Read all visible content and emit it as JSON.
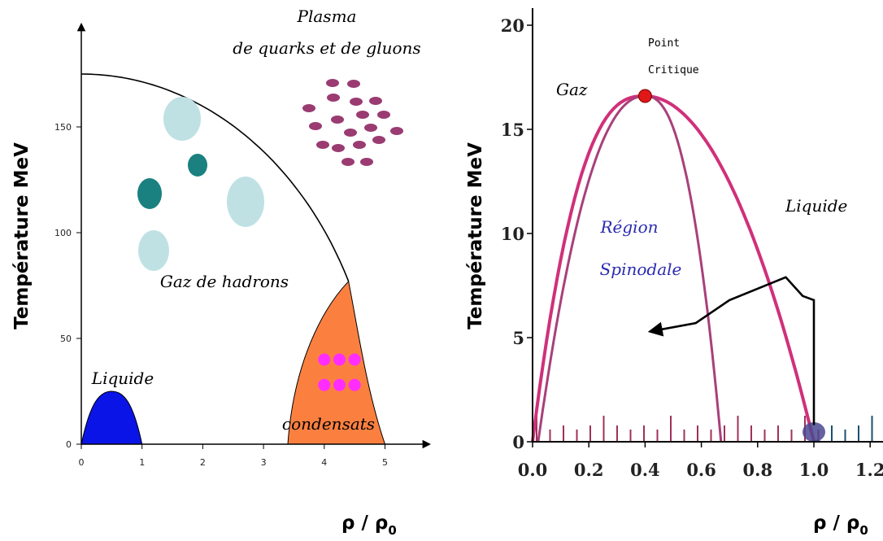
{
  "chart_data": [
    {
      "type": "area",
      "ylabel": "Température MeV",
      "xlabel_main": "ρ / ρ",
      "xlabel_sub": "0",
      "x_ticks": [
        "0",
        "1",
        "2",
        "3",
        "4",
        "5"
      ],
      "y_ticks": [
        "0",
        "50",
        "100",
        "150"
      ],
      "xlim": [
        0,
        5.5
      ],
      "ylim": [
        0,
        200
      ],
      "hadron_boundary": {
        "T_at_zero": 175,
        "rho_end": 4.4,
        "T_end": 77
      },
      "regions": {
        "plasma_line1": "Plasma",
        "plasma_line2": "de quarks et de gluons",
        "hadron_gas": "Gaz de hadrons",
        "liquid": "Liquide",
        "condensates": "condensats"
      },
      "colors": {
        "liquid": "#0a14e6",
        "condensates": "#fb8040",
        "condensate_dots": "#ff2dff",
        "plasma_dots": "#9a3b72",
        "hadron_light": "#bfe1e4",
        "hadron_dark": "#1a8080"
      }
    },
    {
      "type": "line",
      "ylabel": "Température MeV",
      "xlabel_main": "ρ / ρ",
      "xlabel_sub": "0",
      "x_ticks": [
        "0.0",
        "0.2",
        "0.4",
        "0.6",
        "0.8",
        "1.0",
        "1.2"
      ],
      "y_ticks": [
        "0",
        "5",
        "10",
        "15",
        "20"
      ],
      "xlim": [
        0,
        1.25
      ],
      "ylim": [
        0,
        20
      ],
      "critical_point": {
        "x": 0.4,
        "y": 16.6
      },
      "coexistence_curve": {
        "x_min": 0.0,
        "x_max": 1.0,
        "peak_x": 0.4,
        "peak_y": 16.6
      },
      "spinodal_curve": {
        "x_min": 0.02,
        "x_max": 0.67,
        "peak_x": 0.4,
        "peak_y": 16.6
      },
      "path": [
        {
          "x": 1.0,
          "y": 0.8
        },
        {
          "x": 1.0,
          "y": 6.8
        },
        {
          "x": 0.96,
          "y": 7.0
        },
        {
          "x": 0.9,
          "y": 7.9
        },
        {
          "x": 0.7,
          "y": 6.8
        },
        {
          "x": 0.58,
          "y": 5.7
        },
        {
          "x": 0.42,
          "y": 5.3
        }
      ],
      "labels": {
        "critical_line1": "Point",
        "critical_line2": "Critique",
        "gas": "Gaz",
        "liquid": "Liquide",
        "spinodal_line1": "Région",
        "spinodal_line2": "Spinodale"
      },
      "colors": {
        "curve": "#d0307a",
        "spinodal": "#a8407a",
        "critical_point": "#e01818",
        "nucleus": "#4a4890",
        "spinodal_text": "#2a2ab0",
        "baseline_ticks": "#a0305a",
        "baseline_ticks_right": "#1a5070"
      }
    }
  ]
}
